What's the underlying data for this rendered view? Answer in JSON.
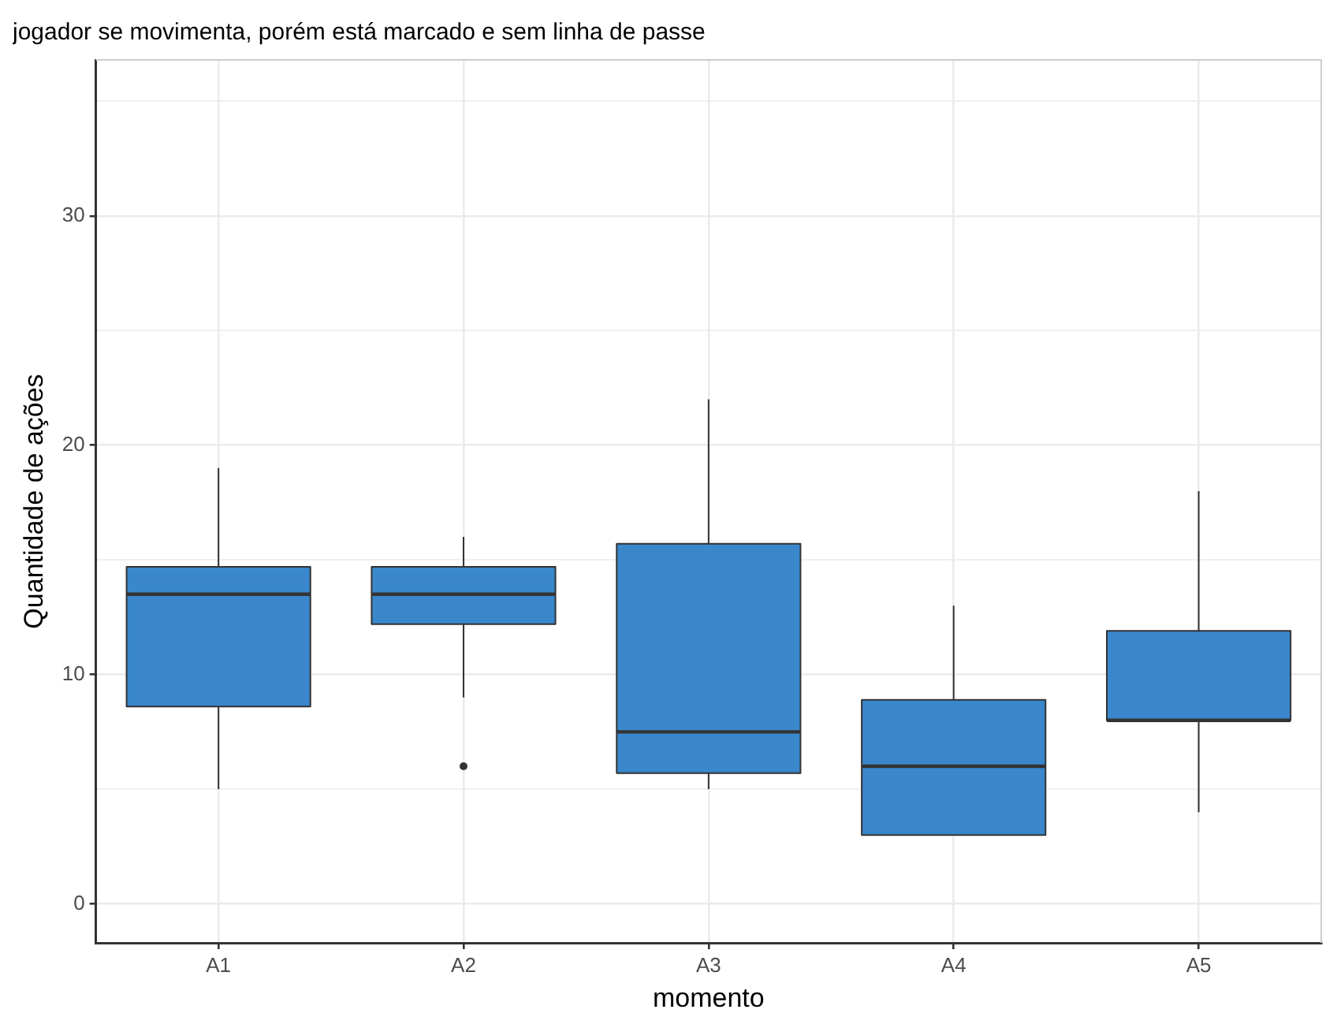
{
  "chart_data": {
    "type": "box",
    "title": "jogador se movimenta, porém está marcado e sem linha de passe",
    "xlabel": "momento",
    "ylabel": "Quantidade de ações",
    "categories": [
      "A1",
      "A2",
      "A3",
      "A4",
      "A5"
    ],
    "color": "#3a87cc",
    "boxes": [
      {
        "low": 5,
        "q1": 8.6,
        "median": 13.5,
        "q3": 14.7,
        "high": 19
      },
      {
        "low": 9,
        "q1": 12.2,
        "median": 13.5,
        "q3": 14.7,
        "high": 16,
        "outliers": [
          6
        ]
      },
      {
        "low": 5,
        "q1": 5.7,
        "median": 7.5,
        "q3": 15.7,
        "high": 22
      },
      {
        "low": 3,
        "q1": 3,
        "median": 6,
        "q3": 8.9,
        "high": 13
      },
      {
        "low": 4,
        "q1": 8,
        "median": 8,
        "q3": 11.9,
        "high": 18
      }
    ],
    "ylim": [
      -1.7,
      36.8
    ],
    "yticks": [
      0,
      {
        "value": 5,
        "label": null
      },
      10,
      {
        "value": 15,
        "label": null
      },
      20,
      {
        "value": 25,
        "label": null
      },
      30,
      {
        "value": 35,
        "label": null
      }
    ],
    "grid": true,
    "legend": false
  }
}
